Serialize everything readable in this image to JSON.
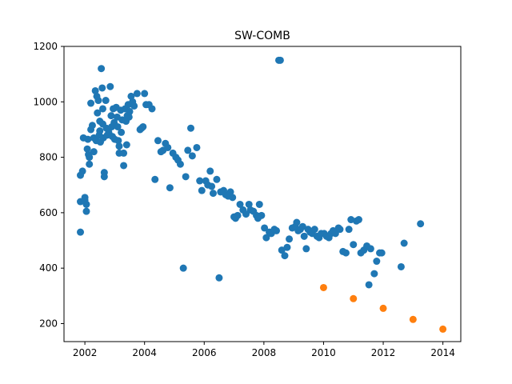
{
  "chart_data": {
    "type": "scatter",
    "title": "SW-COMB",
    "xlabel": "",
    "ylabel": "",
    "xlim": [
      2001.3,
      2014.6
    ],
    "ylim": [
      135,
      1200
    ],
    "x_ticks": [
      2002,
      2004,
      2006,
      2008,
      2010,
      2012,
      2014
    ],
    "y_ticks": [
      200,
      400,
      600,
      800,
      1000,
      1200
    ],
    "grid": false,
    "legend": "none",
    "series": [
      {
        "color": "#1f77b4",
        "points": [
          [
            2001.85,
            530
          ],
          [
            2001.85,
            640
          ],
          [
            2001.85,
            735
          ],
          [
            2001.92,
            750
          ],
          [
            2001.95,
            870
          ],
          [
            2002.0,
            655
          ],
          [
            2002.0,
            645
          ],
          [
            2002.05,
            630
          ],
          [
            2002.05,
            605
          ],
          [
            2002.08,
            830
          ],
          [
            2002.1,
            865
          ],
          [
            2002.12,
            810
          ],
          [
            2002.15,
            800
          ],
          [
            2002.15,
            775
          ],
          [
            2002.2,
            900
          ],
          [
            2002.2,
            995
          ],
          [
            2002.25,
            915
          ],
          [
            2002.3,
            870
          ],
          [
            2002.3,
            820
          ],
          [
            2002.35,
            1040
          ],
          [
            2002.38,
            860
          ],
          [
            2002.4,
            1020
          ],
          [
            2002.42,
            960
          ],
          [
            2002.45,
            1005
          ],
          [
            2002.48,
            880
          ],
          [
            2002.5,
            930
          ],
          [
            2002.5,
            895
          ],
          [
            2002.52,
            855
          ],
          [
            2002.55,
            1120
          ],
          [
            2002.58,
            1050
          ],
          [
            2002.6,
            975
          ],
          [
            2002.6,
            920
          ],
          [
            2002.62,
            870
          ],
          [
            2002.65,
            745
          ],
          [
            2002.65,
            730
          ],
          [
            2002.7,
            1005
          ],
          [
            2002.72,
            905
          ],
          [
            2002.75,
            880
          ],
          [
            2002.8,
            890
          ],
          [
            2002.85,
            1055
          ],
          [
            2002.88,
            950
          ],
          [
            2002.9,
            910
          ],
          [
            2002.92,
            875
          ],
          [
            2002.95,
            975
          ],
          [
            2002.98,
            925
          ],
          [
            2003.0,
            865
          ],
          [
            2003.05,
            980
          ],
          [
            2003.08,
            945
          ],
          [
            2003.1,
            910
          ],
          [
            2003.12,
            860
          ],
          [
            2003.15,
            840
          ],
          [
            2003.15,
            815
          ],
          [
            2003.2,
            970
          ],
          [
            2003.22,
            890
          ],
          [
            2003.25,
            935
          ],
          [
            2003.3,
            770
          ],
          [
            2003.3,
            815
          ],
          [
            2003.35,
            975
          ],
          [
            2003.38,
            930
          ],
          [
            2003.4,
            845
          ],
          [
            2003.42,
            950
          ],
          [
            2003.45,
            990
          ],
          [
            2003.48,
            945
          ],
          [
            2003.5,
            965
          ],
          [
            2003.55,
            1020
          ],
          [
            2003.6,
            1000
          ],
          [
            2003.65,
            985
          ],
          [
            2003.75,
            1030
          ],
          [
            2003.85,
            900
          ],
          [
            2003.9,
            905
          ],
          [
            2003.95,
            910
          ],
          [
            2004.0,
            1030
          ],
          [
            2004.05,
            990
          ],
          [
            2004.15,
            990
          ],
          [
            2004.25,
            975
          ],
          [
            2004.35,
            720
          ],
          [
            2004.45,
            860
          ],
          [
            2004.55,
            820
          ],
          [
            2004.62,
            825
          ],
          [
            2004.7,
            850
          ],
          [
            2004.78,
            835
          ],
          [
            2004.85,
            690
          ],
          [
            2004.95,
            815
          ],
          [
            2005.05,
            800
          ],
          [
            2005.12,
            790
          ],
          [
            2005.2,
            775
          ],
          [
            2005.3,
            400
          ],
          [
            2005.38,
            730
          ],
          [
            2005.45,
            825
          ],
          [
            2005.55,
            905
          ],
          [
            2005.6,
            805
          ],
          [
            2005.75,
            835
          ],
          [
            2005.85,
            715
          ],
          [
            2005.92,
            680
          ],
          [
            2006.05,
            715
          ],
          [
            2006.12,
            700
          ],
          [
            2006.2,
            750
          ],
          [
            2006.25,
            695
          ],
          [
            2006.3,
            670
          ],
          [
            2006.42,
            720
          ],
          [
            2006.5,
            365
          ],
          [
            2006.55,
            675
          ],
          [
            2006.65,
            680
          ],
          [
            2006.72,
            665
          ],
          [
            2006.8,
            660
          ],
          [
            2006.88,
            675
          ],
          [
            2006.95,
            655
          ],
          [
            2007.0,
            585
          ],
          [
            2007.05,
            580
          ],
          [
            2007.12,
            590
          ],
          [
            2007.2,
            630
          ],
          [
            2007.3,
            610
          ],
          [
            2007.4,
            595
          ],
          [
            2007.5,
            630
          ],
          [
            2007.55,
            610
          ],
          [
            2007.65,
            605
          ],
          [
            2007.75,
            590
          ],
          [
            2007.8,
            580
          ],
          [
            2007.85,
            630
          ],
          [
            2007.92,
            590
          ],
          [
            2008.02,
            545
          ],
          [
            2008.08,
            510
          ],
          [
            2008.18,
            530
          ],
          [
            2008.25,
            525
          ],
          [
            2008.35,
            540
          ],
          [
            2008.42,
            535
          ],
          [
            2008.5,
            1150
          ],
          [
            2008.55,
            1150
          ],
          [
            2008.6,
            465
          ],
          [
            2008.7,
            445
          ],
          [
            2008.78,
            475
          ],
          [
            2008.85,
            505
          ],
          [
            2008.95,
            545
          ],
          [
            2009.05,
            550
          ],
          [
            2009.1,
            565
          ],
          [
            2009.15,
            535
          ],
          [
            2009.22,
            540
          ],
          [
            2009.3,
            550
          ],
          [
            2009.35,
            515
          ],
          [
            2009.42,
            470
          ],
          [
            2009.48,
            540
          ],
          [
            2009.55,
            530
          ],
          [
            2009.62,
            525
          ],
          [
            2009.7,
            540
          ],
          [
            2009.78,
            515
          ],
          [
            2009.85,
            510
          ],
          [
            2009.92,
            525
          ],
          [
            2010.02,
            525
          ],
          [
            2010.1,
            515
          ],
          [
            2010.18,
            510
          ],
          [
            2010.25,
            525
          ],
          [
            2010.32,
            535
          ],
          [
            2010.4,
            525
          ],
          [
            2010.5,
            545
          ],
          [
            2010.55,
            540
          ],
          [
            2010.65,
            460
          ],
          [
            2010.75,
            455
          ],
          [
            2010.85,
            540
          ],
          [
            2010.92,
            575
          ],
          [
            2011.0,
            485
          ],
          [
            2011.1,
            570
          ],
          [
            2011.18,
            575
          ],
          [
            2011.25,
            455
          ],
          [
            2011.35,
            465
          ],
          [
            2011.45,
            480
          ],
          [
            2011.52,
            340
          ],
          [
            2011.58,
            470
          ],
          [
            2011.7,
            380
          ],
          [
            2011.78,
            425
          ],
          [
            2011.88,
            455
          ],
          [
            2011.95,
            455
          ],
          [
            2012.6,
            405
          ],
          [
            2012.7,
            490
          ],
          [
            2013.25,
            560
          ]
        ]
      },
      {
        "color": "#ff7f0e",
        "points": [
          [
            2010.0,
            330
          ],
          [
            2011.0,
            290
          ],
          [
            2012.0,
            255
          ],
          [
            2013.0,
            215
          ],
          [
            2014.0,
            180
          ]
        ]
      }
    ]
  }
}
